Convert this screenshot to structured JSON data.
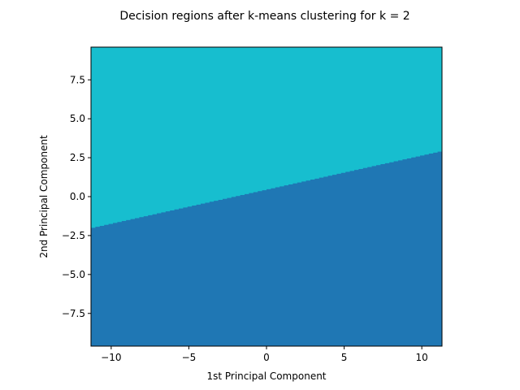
{
  "chart_data": {
    "type": "heatmap",
    "title": "Decision regions after k-means clustering for k = 2",
    "xlabel": "1st Principal Component",
    "ylabel": "2nd Principal Component",
    "xlim": [
      -11.3,
      11.3
    ],
    "ylim": [
      -9.6,
      9.6
    ],
    "xticks": [
      -10,
      -5,
      0,
      5,
      10
    ],
    "xtick_labels": [
      "−10",
      "−5",
      "0",
      "5",
      "10"
    ],
    "yticks": [
      -7.5,
      -5.0,
      -2.5,
      0.0,
      2.5,
      5.0,
      7.5
    ],
    "ytick_labels": [
      "−7.5",
      "−5.0",
      "−2.5",
      "0.0",
      "2.5",
      "5.0",
      "7.5"
    ],
    "grid": false,
    "regions": [
      {
        "position": "upper",
        "color": "#17becf"
      },
      {
        "position": "lower",
        "color": "#1f77b4"
      }
    ],
    "boundary": {
      "x": [
        -11.3,
        11.3
      ],
      "y": [
        -2.0,
        2.95
      ]
    }
  }
}
